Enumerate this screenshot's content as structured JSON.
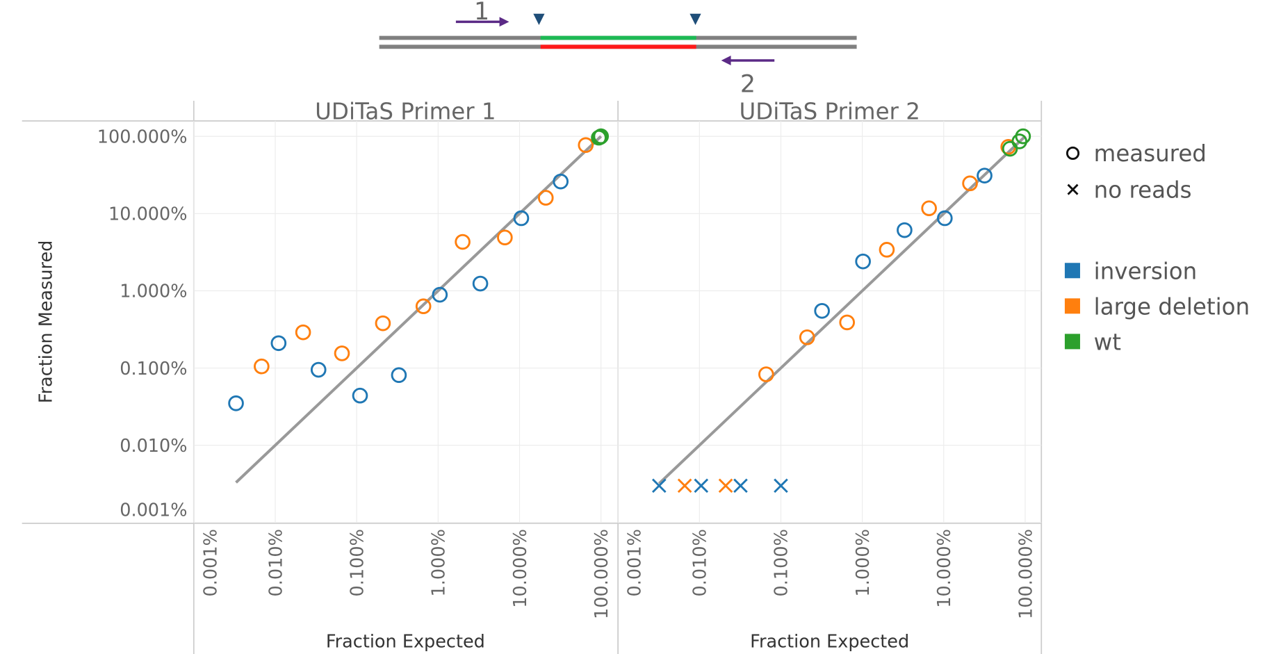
{
  "diagram": {
    "labels": [
      "1",
      "2"
    ]
  },
  "y_label": "Fraction Measured",
  "legend": {
    "shapes": [
      {
        "label": "measured",
        "marker": "circle"
      },
      {
        "label": "no reads",
        "marker": "x"
      }
    ],
    "colors": [
      {
        "label": "inversion",
        "color": "#1f77b4"
      },
      {
        "label": "large deletion",
        "color": "#ff7f0e"
      },
      {
        "label": "wt",
        "color": "#2ca02c"
      }
    ]
  },
  "chart_data": [
    {
      "type": "scatter",
      "title": "UDiTaS Primer 1",
      "x_label": "Fraction Expected",
      "log_scale": true,
      "grid": true,
      "xlim": [
        0.001,
        158
      ],
      "ylim": [
        0.001,
        158
      ],
      "xticks": [
        {
          "value": 0.001,
          "label": "0.001%"
        },
        {
          "value": 0.01,
          "label": "0.010%"
        },
        {
          "value": 0.1,
          "label": "0.100%"
        },
        {
          "value": 1,
          "label": "1.000%"
        },
        {
          "value": 10,
          "label": "10.000%"
        },
        {
          "value": 100,
          "label": "100.000%"
        }
      ],
      "yticks": [
        {
          "value": 100,
          "label": "100.000%"
        },
        {
          "value": 10,
          "label": "10.000%"
        },
        {
          "value": 1,
          "label": "1.000%"
        },
        {
          "value": 0.1,
          "label": "0.100%"
        },
        {
          "value": 0.01,
          "label": "0.010%"
        },
        {
          "value": 0.001,
          "label": "0.001%"
        }
      ],
      "diagonal": {
        "x": [
          0.0033,
          100
        ],
        "y": [
          0.0033,
          100
        ],
        "color": "#999999"
      },
      "series": [
        {
          "color": "#1f77b4",
          "marker": "circle",
          "x": [
            0.0033,
            0.011,
            0.034,
            0.11,
            0.33,
            1.05,
            3.3,
            10.5,
            32
          ],
          "values": [
            0.035,
            0.21,
            0.095,
            0.044,
            0.081,
            0.89,
            1.24,
            8.7,
            26
          ]
        },
        {
          "color": "#ff7f0e",
          "marker": "circle",
          "x": [
            0.0068,
            0.022,
            0.066,
            0.21,
            0.66,
            2.0,
            6.6,
            21,
            65
          ],
          "values": [
            0.105,
            0.29,
            0.155,
            0.38,
            0.63,
            4.3,
            4.9,
            16,
            77
          ]
        },
        {
          "color": "#2ca02c",
          "marker": "circle",
          "x": [
            94,
            98,
            100
          ],
          "values": [
            96,
            98,
            100
          ]
        }
      ]
    },
    {
      "type": "scatter",
      "title": "UDiTaS Primer 2",
      "x_label": "Fraction Expected",
      "log_scale": true,
      "grid": true,
      "xlim": [
        0.001,
        158
      ],
      "ylim": [
        0.001,
        158
      ],
      "xticks": [
        {
          "value": 0.001,
          "label": "0.001%"
        },
        {
          "value": 0.01,
          "label": "0.010%"
        },
        {
          "value": 0.1,
          "label": "0.100%"
        },
        {
          "value": 1,
          "label": "1.000%"
        },
        {
          "value": 10,
          "label": "10.000%"
        },
        {
          "value": 100,
          "label": "100.000%"
        }
      ],
      "yticks": [
        {
          "value": 100,
          "label": "100.000%"
        },
        {
          "value": 10,
          "label": "10.000%"
        },
        {
          "value": 1,
          "label": "1.000%"
        },
        {
          "value": 0.1,
          "label": "0.100%"
        },
        {
          "value": 0.01,
          "label": "0.010%"
        },
        {
          "value": 0.001,
          "label": "0.001%"
        }
      ],
      "diagonal": {
        "x": [
          0.0032,
          100
        ],
        "y": [
          0.0032,
          100
        ],
        "color": "#999999"
      },
      "series": [
        {
          "color": "#1f77b4",
          "marker": "circle",
          "x": [
            0.32,
            1.02,
            3.3,
            10.3,
            31.7
          ],
          "values": [
            0.55,
            2.4,
            6.1,
            8.7,
            31
          ]
        },
        {
          "color": "#ff7f0e",
          "marker": "circle",
          "x": [
            0.066,
            0.21,
            0.65,
            2.0,
            6.6,
            21,
            62
          ],
          "values": [
            0.083,
            0.25,
            0.39,
            3.4,
            11.7,
            24.6,
            73
          ]
        },
        {
          "color": "#2ca02c",
          "marker": "circle",
          "x": [
            65,
            85,
            94
          ],
          "values": [
            69,
            86,
            100
          ]
        },
        {
          "color": "#1f77b4",
          "marker": "x",
          "x": [
            0.0032,
            0.0105,
            0.032,
            0.1
          ],
          "values": [
            0.003,
            0.003,
            0.003,
            0.003
          ]
        },
        {
          "color": "#ff7f0e",
          "marker": "x",
          "x": [
            0.0066,
            0.021
          ],
          "values": [
            0.003,
            0.003
          ]
        }
      ]
    }
  ]
}
